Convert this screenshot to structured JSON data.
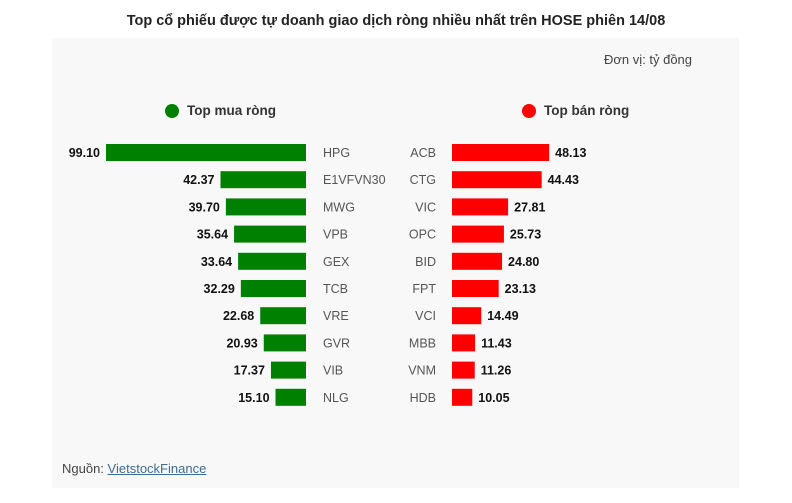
{
  "title": "Top cổ phiếu được tự doanh giao dịch ròng nhiều nhất trên HOSE phiên 14/08",
  "unit": "Đơn vị: tỷ đồng",
  "source": {
    "label": "Nguồn: ",
    "link": "VietstockFinance"
  },
  "colors": {
    "buy": "#008000",
    "sell": "#ff0000"
  },
  "chart_data": [
    {
      "type": "bar",
      "orientation": "horizontal",
      "legend": "Top mua ròng",
      "categories": [
        "HPG",
        "E1VFVN30",
        "MWG",
        "VPB",
        "GEX",
        "TCB",
        "VRE",
        "GVR",
        "VIB",
        "NLG"
      ],
      "values": [
        99.1,
        42.37,
        39.7,
        35.64,
        33.64,
        32.29,
        22.68,
        20.93,
        17.37,
        15.1
      ],
      "labels": [
        "99.10",
        "42.37",
        "39.70",
        "35.64",
        "33.64",
        "32.29",
        "22.68",
        "20.93",
        "17.37",
        "15.10"
      ]
    },
    {
      "type": "bar",
      "orientation": "horizontal",
      "legend": "Top bán ròng",
      "categories": [
        "ACB",
        "CTG",
        "VIC",
        "OPC",
        "BID",
        "FPT",
        "VCI",
        "MBB",
        "VNM",
        "HDB"
      ],
      "values": [
        48.13,
        44.43,
        27.81,
        25.73,
        24.8,
        23.13,
        14.49,
        11.43,
        11.26,
        10.05
      ],
      "labels": [
        "48.13",
        "44.43",
        "27.81",
        "25.73",
        "24.80",
        "23.13",
        "14.49",
        "11.43",
        "11.26",
        "10.05"
      ]
    }
  ]
}
